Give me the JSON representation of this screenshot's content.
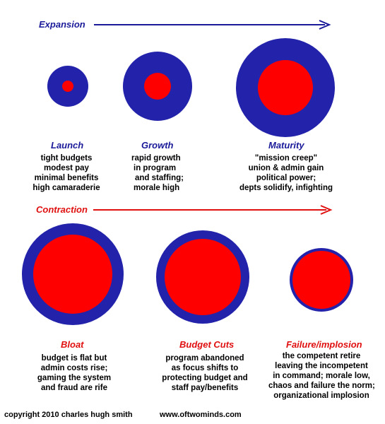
{
  "colors": {
    "outer_ring": "#2222aa",
    "inner_core": "#ff0000",
    "expansion_text": "#1a1a9a",
    "contraction_text": "#e01010",
    "arrow_expansion": "#1a1a9a",
    "arrow_contraction": "#e01010"
  },
  "phases": {
    "expansion": {
      "label": "Expansion"
    },
    "contraction": {
      "label": "Contraction"
    }
  },
  "stages": [
    {
      "title": "Launch",
      "lines": [
        "tight budgets",
        "modest pay",
        "minimal benefits",
        "high camaraderie"
      ]
    },
    {
      "title": "Growth",
      "lines": [
        "rapid growth",
        "in program",
        "and staffing;",
        "morale high"
      ]
    },
    {
      "title": "Maturity",
      "lines": [
        "\"mission creep\"",
        "union & admin gain",
        "political power;",
        "depts solidify, infighting"
      ]
    },
    {
      "title": "Bloat",
      "lines": [
        "budget is flat but",
        "admin costs rise;",
        "gaming the system",
        "and fraud are rife"
      ]
    },
    {
      "title": "Budget Cuts",
      "lines": [
        "program abandoned",
        "as focus shifts to",
        "protecting budget and",
        "staff pay/benefits"
      ]
    },
    {
      "title": "Failure/implosion",
      "lines": [
        "the competent retire",
        "leaving the incompetent",
        "in command; morale low,",
        "chaos and failure the norm;",
        "organizational implosion"
      ]
    }
  ],
  "footer": {
    "copyright": "copyright 2010  charles hugh smith",
    "website": "www.oftwominds.com"
  }
}
